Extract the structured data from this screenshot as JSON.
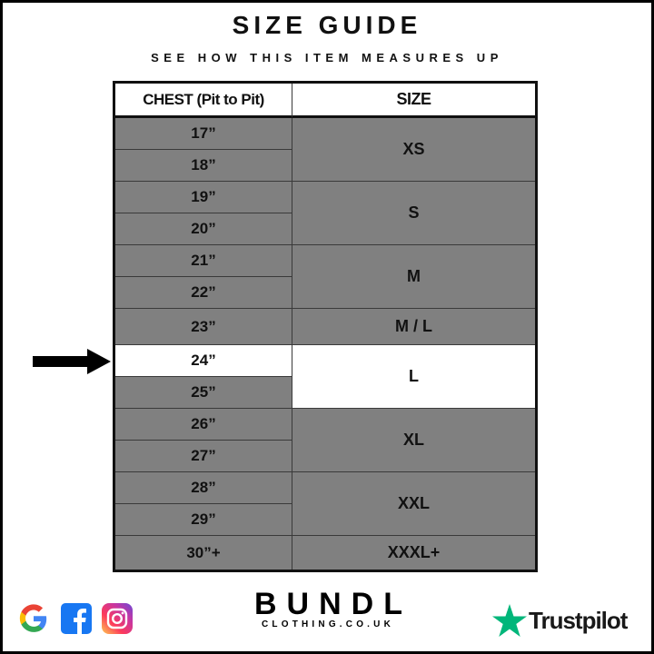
{
  "title": "SIZE GUIDE",
  "subtitle": "SEE HOW THIS ITEM MEASURES UP",
  "table": {
    "headers": [
      "CHEST (Pit to Pit)",
      "SIZE"
    ],
    "chest": [
      "17”",
      "18”",
      "19”",
      "20”",
      "21”",
      "22”",
      "23”",
      "24”",
      "25”",
      "26”",
      "27”",
      "28”",
      "29”",
      "30”+"
    ],
    "sizes": [
      "XS",
      "S",
      "M",
      "M / L",
      "L",
      "XL",
      "XXL",
      "XXXL+"
    ],
    "highlighted_chest": "24”",
    "highlighted_size": "L"
  },
  "colors": {
    "row_fill": "#808080",
    "highlight": "#ffffff",
    "trustpilot_green": "#00b67a"
  },
  "footer": {
    "icons": [
      "google-icon",
      "facebook-icon",
      "instagram-icon"
    ],
    "brand": "BUNDL",
    "brand_sub": "CLOTHING.CO.UK",
    "trustpilot": "Trustpilot"
  }
}
